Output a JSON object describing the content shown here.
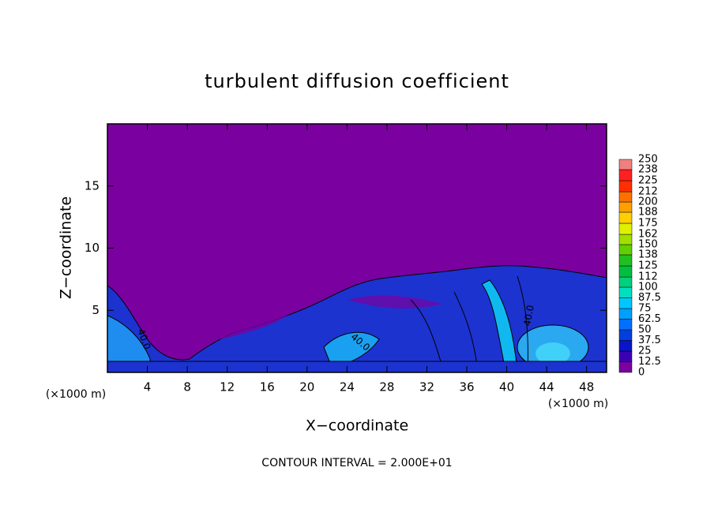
{
  "chart_data": {
    "type": "contour",
    "title": "turbulent diffusion coefficient",
    "x_label": "X−coordinate",
    "y_label": "Z−coordinate",
    "x_unit_left": "(×1000 m)",
    "x_unit_right": "(×1000 m)",
    "note": "CONTOUR INTERVAL = 2.000E+01",
    "xlim": [
      0,
      50
    ],
    "xticks": [
      4,
      8,
      12,
      16,
      20,
      24,
      28,
      32,
      36,
      40,
      44,
      48
    ],
    "ylim": [
      0,
      20
    ],
    "yticks": [
      5,
      10,
      15
    ],
    "contour_labels": [
      "40.0",
      "40.0",
      "40.0"
    ],
    "levels": [
      0,
      12.5,
      25,
      37.5,
      50,
      62.5,
      75,
      87.5,
      100,
      112,
      125,
      138,
      150,
      162,
      175,
      188,
      200,
      212,
      225,
      238,
      250
    ],
    "colors": [
      "#7a00a0",
      "#3c00b4",
      "#0a14c8",
      "#0040e0",
      "#0070ff",
      "#00a0ff",
      "#00c8ff",
      "#00e0c0",
      "#00d080",
      "#00c040",
      "#20c020",
      "#60d000",
      "#a0e000",
      "#e0f000",
      "#ffd000",
      "#ffa000",
      "#ff7000",
      "#ff3000",
      "#ff2020",
      "#f08080"
    ]
  }
}
